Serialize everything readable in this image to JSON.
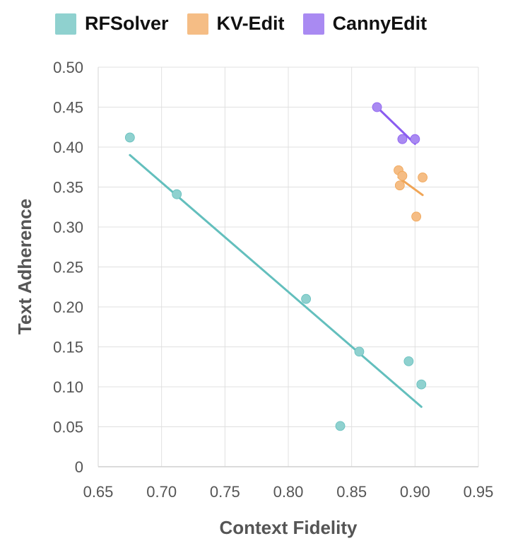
{
  "chart_data": {
    "type": "scatter",
    "title": "",
    "xlabel": "Context Fidelity",
    "ylabel": "Text Adherence",
    "xlim": [
      0.65,
      0.95
    ],
    "ylim": [
      0,
      0.5
    ],
    "x_ticks": [
      "0.65",
      "0.70",
      "0.75",
      "0.80",
      "0.85",
      "0.90",
      "0.95"
    ],
    "y_ticks": [
      "0",
      "0.05",
      "0.10",
      "0.15",
      "0.20",
      "0.25",
      "0.30",
      "0.35",
      "0.40",
      "0.45",
      "0.50"
    ],
    "grid": true,
    "legend_position": "top",
    "series": [
      {
        "name": "RFSolver",
        "color": "#8fd1cf",
        "line_color": "#63bfbd",
        "points": [
          {
            "x": 0.675,
            "y": 0.412
          },
          {
            "x": 0.712,
            "y": 0.341
          },
          {
            "x": 0.814,
            "y": 0.21
          },
          {
            "x": 0.856,
            "y": 0.144
          },
          {
            "x": 0.841,
            "y": 0.051
          },
          {
            "x": 0.895,
            "y": 0.132
          },
          {
            "x": 0.905,
            "y": 0.103
          }
        ],
        "trend": [
          {
            "x": 0.675,
            "y": 0.39
          },
          {
            "x": 0.905,
            "y": 0.075
          }
        ]
      },
      {
        "name": "KV-Edit",
        "color": "#f5bd85",
        "line_color": "#f0a556",
        "points": [
          {
            "x": 0.887,
            "y": 0.371
          },
          {
            "x": 0.89,
            "y": 0.364
          },
          {
            "x": 0.888,
            "y": 0.352
          },
          {
            "x": 0.906,
            "y": 0.362
          },
          {
            "x": 0.901,
            "y": 0.313
          }
        ],
        "trend": [
          {
            "x": 0.887,
            "y": 0.362
          },
          {
            "x": 0.906,
            "y": 0.34
          }
        ]
      },
      {
        "name": "CannyEdit",
        "color": "#a98af2",
        "line_color": "#8b5cf0",
        "points": [
          {
            "x": 0.87,
            "y": 0.45
          },
          {
            "x": 0.89,
            "y": 0.41
          },
          {
            "x": 0.9,
            "y": 0.41
          }
        ],
        "trend": [
          {
            "x": 0.87,
            "y": 0.45
          },
          {
            "x": 0.9,
            "y": 0.404
          }
        ]
      }
    ]
  }
}
